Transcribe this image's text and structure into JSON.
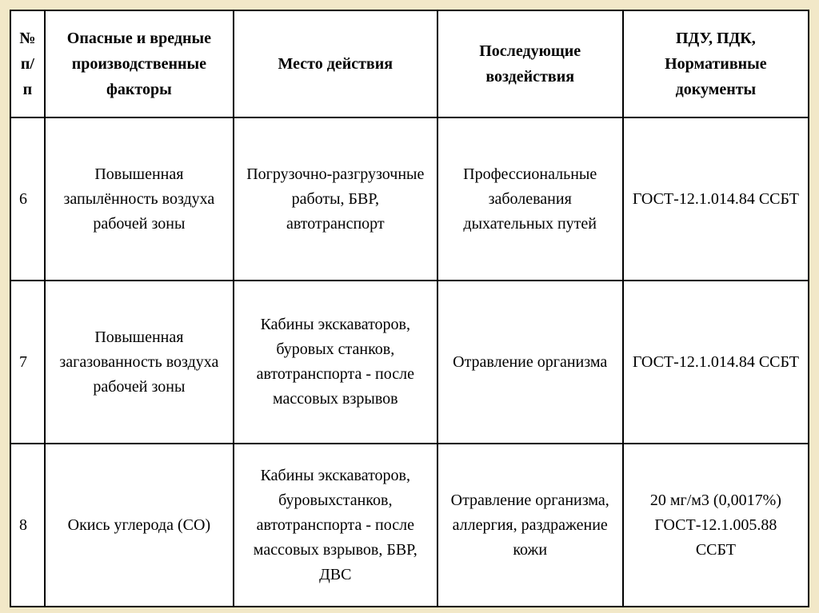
{
  "table": {
    "background_color": "#ffffff",
    "page_background": "#f2e8c8",
    "border_color": "#000000",
    "font_family": "Times New Roman",
    "header_fontsize": 20,
    "cell_fontsize": 20,
    "columns": {
      "c1": "№\nп/п",
      "c2": "Опасные и вредные производственные факторы",
      "c3": "Место действия",
      "c4": "Последующие воздействия",
      "c5": "ПДУ, ПДК, Нормативные документы"
    },
    "rows": [
      {
        "num": "6",
        "factor": "Повышенная запылённость воздуха рабочей зоны",
        "place": "Погрузочно-разгрузочные работы, БВР, автотранспорт",
        "effect": "Профессиональные заболевания дыхательных путей",
        "norm": "ГОСТ-12.1.014.84 ССБТ"
      },
      {
        "num": "7",
        "factor": "Повышенная загазованность воздуха рабочей зоны",
        "place": "Кабины экскаваторов, буровых станков, автотранспорта - после массовых взрывов",
        "effect": "Отравление организма",
        "norm": "ГОСТ-12.1.014.84 ССБТ"
      },
      {
        "num": "8",
        "factor": "Окись углерода (СО)",
        "place": "Кабины экскаваторов, буровыхстанков, автотранспорта - после массовых взрывов, БВР, ДВС",
        "effect": "Отравление организма, аллергия, раздражение кожи",
        "norm": "20 мг/м3 (0,0017%)\nГОСТ-12.1.005.88\nССБТ"
      }
    ]
  }
}
